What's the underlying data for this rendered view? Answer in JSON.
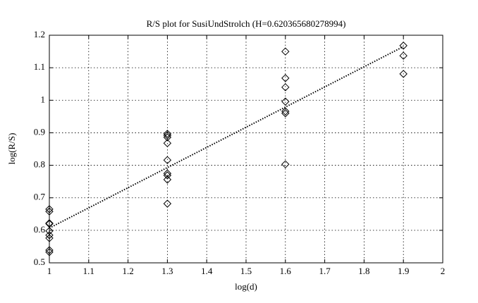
{
  "chart_data": {
    "type": "scatter",
    "title": "R/S plot for SusiUndStrolch (H=0.620365680278994)",
    "xlabel": "log(d)",
    "ylabel": "log(R/S)",
    "x": [
      1,
      1,
      1,
      1,
      1,
      1,
      1,
      1,
      1,
      1.3,
      1.3,
      1.3,
      1.3,
      1.3,
      1.3,
      1.3,
      1.3,
      1.3,
      1.6,
      1.6,
      1.6,
      1.6,
      1.6,
      1.6,
      1.6,
      1.9,
      1.9,
      1.9
    ],
    "y": [
      0.665,
      0.658,
      0.622,
      0.62,
      0.598,
      0.585,
      0.576,
      0.539,
      0.533,
      0.897,
      0.892,
      0.886,
      0.868,
      0.816,
      0.775,
      0.769,
      0.756,
      0.682,
      1.15,
      1.068,
      1.04,
      0.996,
      0.966,
      0.96,
      0.803,
      1.168,
      1.137,
      1.081
    ],
    "fit": {
      "x": [
        1,
        1.9
      ],
      "y": [
        0.607,
        1.165
      ]
    },
    "color": "#000000",
    "xlim": [
      1,
      2
    ],
    "xticks": [
      1,
      1.1,
      1.2,
      1.3,
      1.4,
      1.5,
      1.6,
      1.7,
      1.8,
      1.9,
      2
    ],
    "ylim": [
      0.5,
      1.2
    ],
    "yticks": [
      0.5,
      0.6,
      0.7,
      0.8,
      0.9,
      1,
      1.1,
      1.2
    ],
    "grid": true
  }
}
